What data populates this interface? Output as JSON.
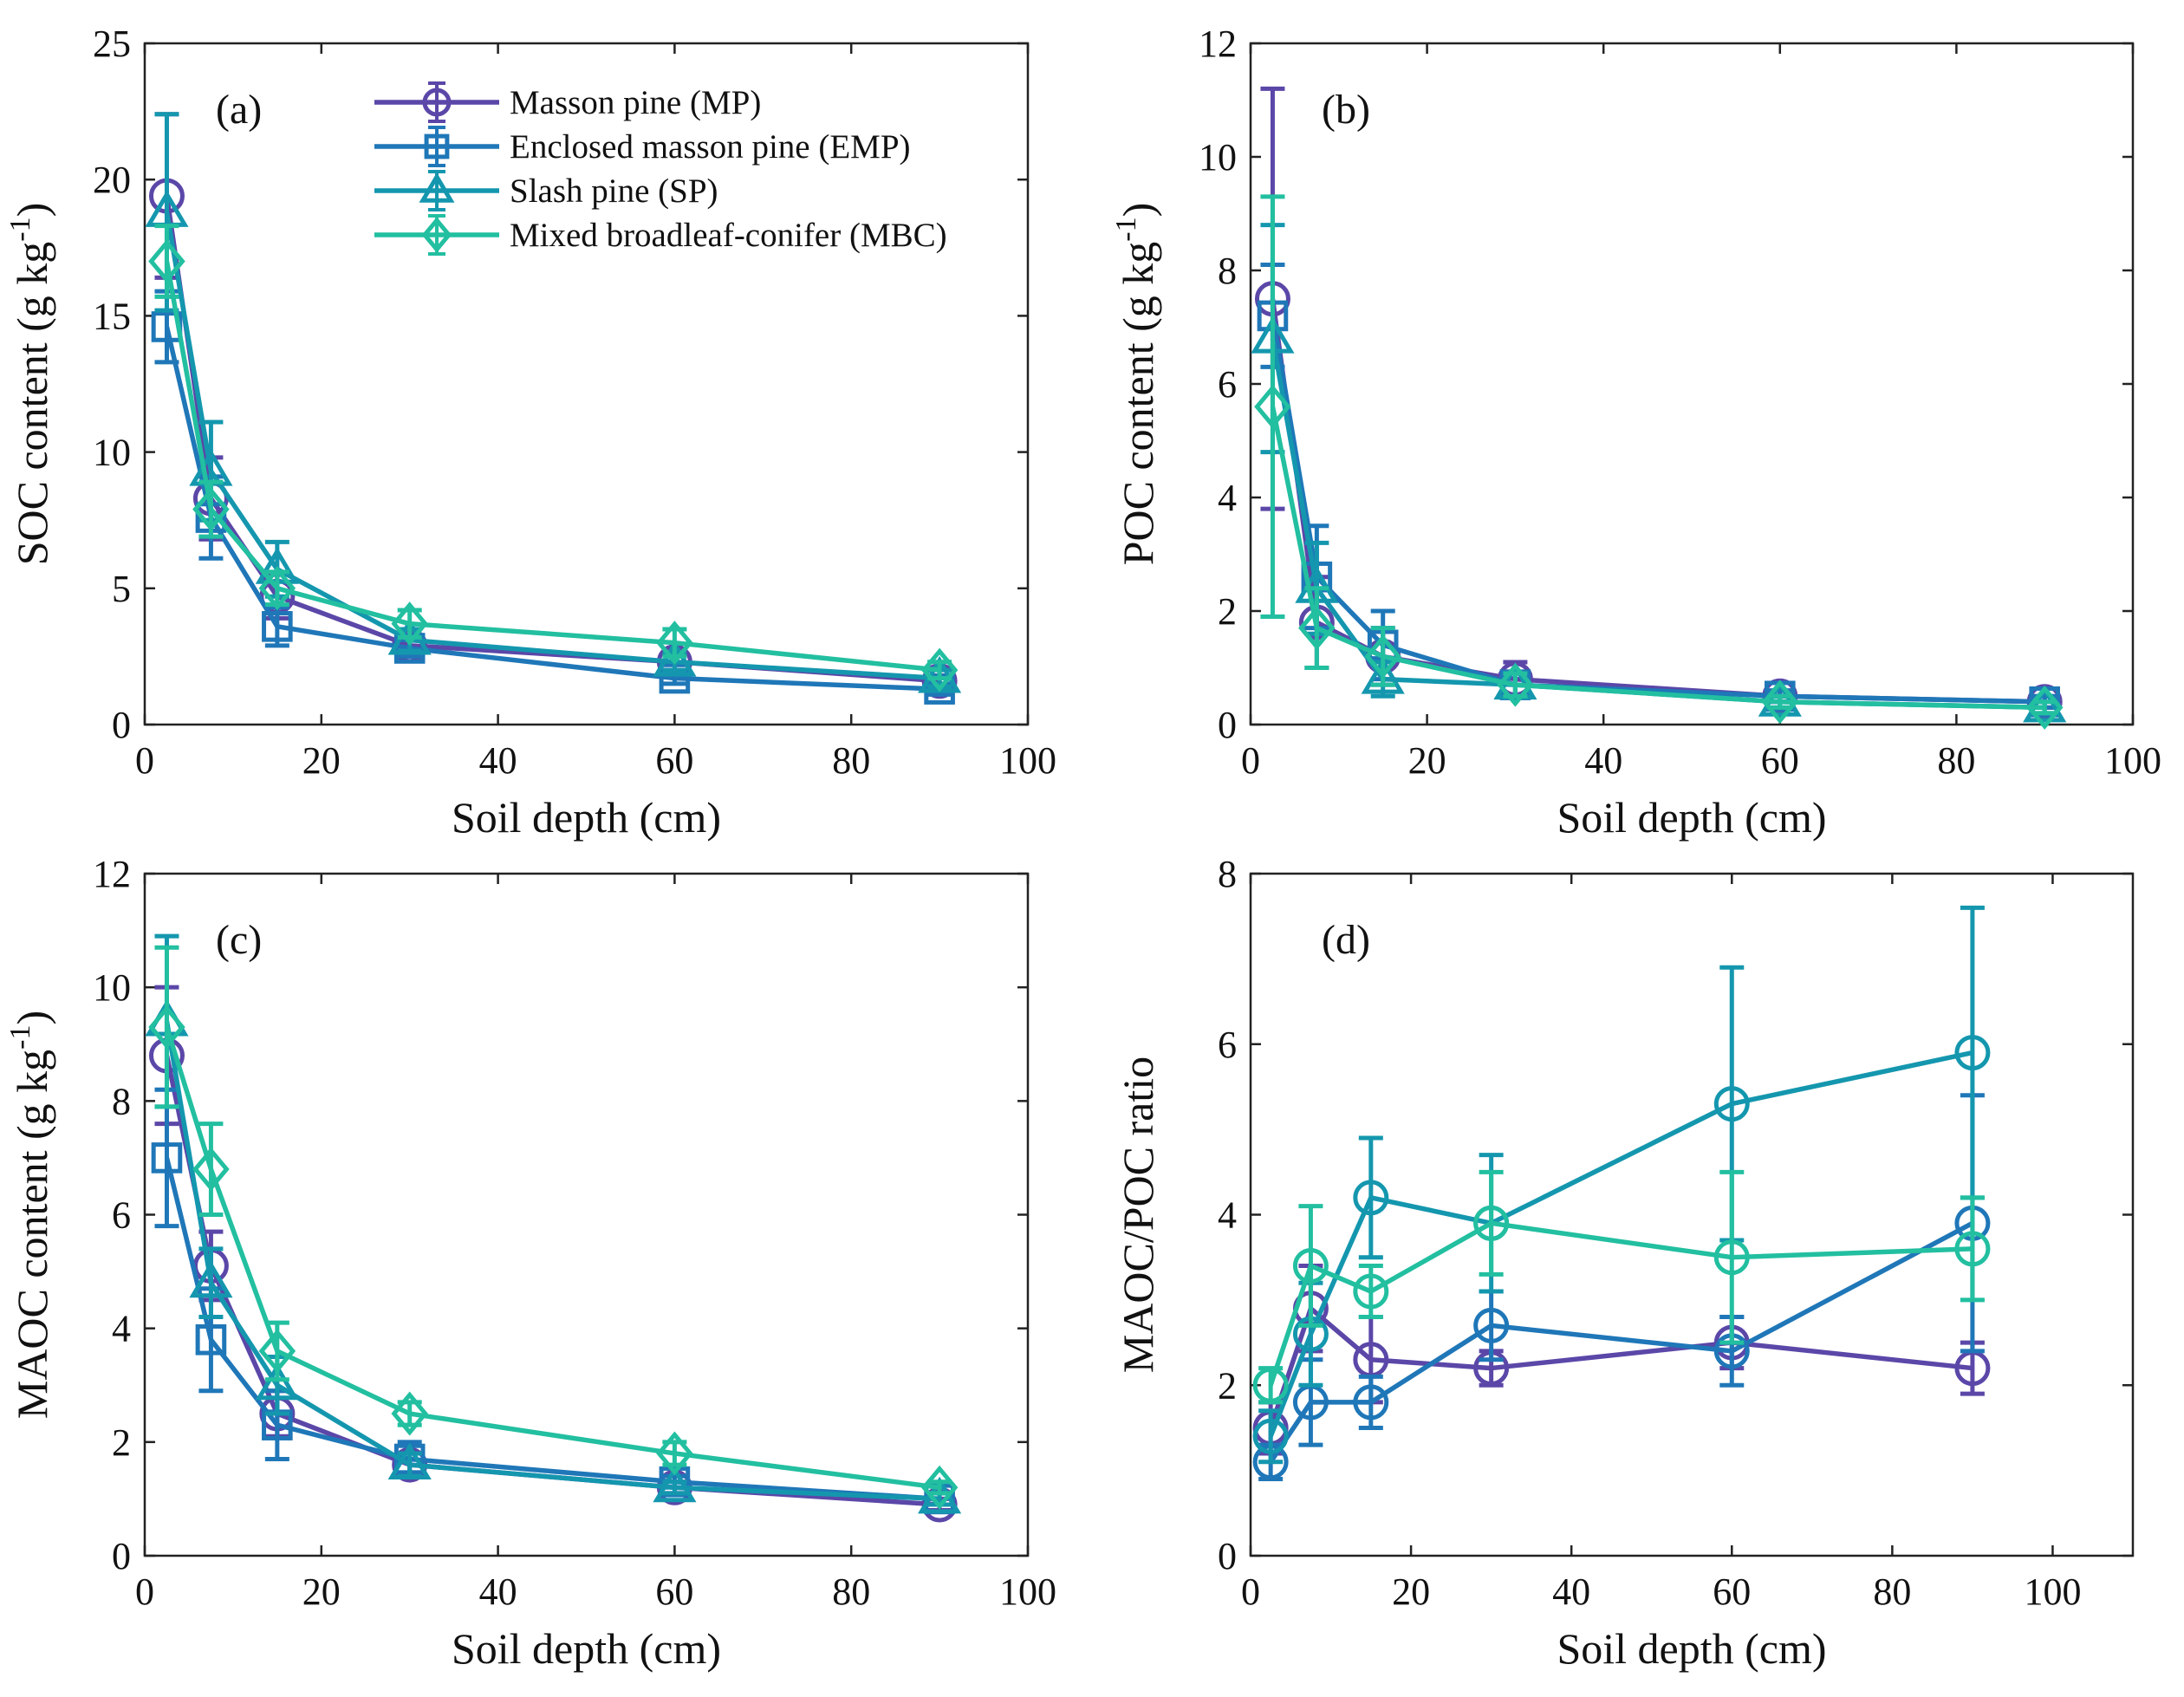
{
  "colors": {
    "MP": "#5B47A8",
    "EMP": "#1F77B8",
    "SP": "#1497AE",
    "MBC": "#22BFA0",
    "axis": "#222222"
  },
  "legend": {
    "entries": [
      {
        "key": "MP",
        "label": "Masson pine (MP)",
        "marker": "circle"
      },
      {
        "key": "EMP",
        "label": "Enclosed masson pine (EMP)",
        "marker": "square"
      },
      {
        "key": "SP",
        "label": "Slash pine (SP)",
        "marker": "triangle"
      },
      {
        "key": "MBC",
        "label": "Mixed broadleaf-conifer (MBC)",
        "marker": "diamond"
      }
    ]
  },
  "chart_data": [
    {
      "type": "line",
      "panel": "(a)",
      "xlabel": "Soil depth (cm)",
      "ylabel": "SOC content (g kg",
      "ylabel_sup": "-1",
      "ylabel_suffix": ")",
      "xlim": [
        0,
        100
      ],
      "ylim": [
        0,
        25
      ],
      "xticks": [
        0,
        20,
        40,
        60,
        80,
        100
      ],
      "yticks": [
        0,
        5,
        10,
        15,
        20,
        25
      ],
      "legend": "top",
      "series": [
        {
          "name": "Masson pine (MP)",
          "key": "MP",
          "marker": "circle",
          "x": [
            2.5,
            7.5,
            15,
            30,
            60,
            90
          ],
          "y": [
            19.4,
            8.3,
            4.7,
            2.9,
            2.3,
            1.6
          ],
          "err": [
            3.0,
            1.5,
            0.8,
            0.4,
            0.3,
            0.2
          ]
        },
        {
          "name": "Enclosed masson pine (EMP)",
          "key": "EMP",
          "marker": "square",
          "x": [
            2.5,
            7.5,
            15,
            30,
            60,
            90
          ],
          "y": [
            14.6,
            7.6,
            3.6,
            2.8,
            1.7,
            1.3
          ],
          "err": [
            1.3,
            1.5,
            0.7,
            0.3,
            0.2,
            0.2
          ]
        },
        {
          "name": "Slash pine (SP)",
          "key": "SP",
          "marker": "triangle",
          "x": [
            2.5,
            7.5,
            15,
            30,
            60,
            90
          ],
          "y": [
            18.8,
            9.3,
            5.7,
            3.1,
            2.3,
            1.7
          ],
          "err": [
            3.6,
            1.8,
            1.0,
            0.4,
            0.3,
            0.3
          ]
        },
        {
          "name": "Mixed broadleaf-conifer (MBC)",
          "key": "MBC",
          "marker": "diamond",
          "x": [
            2.5,
            7.5,
            15,
            30,
            60,
            90
          ],
          "y": [
            17.0,
            7.9,
            5.0,
            3.7,
            3.0,
            2.0
          ],
          "err": [
            1.3,
            1.0,
            0.6,
            0.5,
            0.5,
            0.3
          ]
        }
      ]
    },
    {
      "type": "line",
      "panel": "(b)",
      "xlabel": "Soil depth (cm)",
      "ylabel": "POC content (g kg",
      "ylabel_sup": "-1",
      "ylabel_suffix": ")",
      "xlim": [
        0,
        100
      ],
      "ylim": [
        0,
        12
      ],
      "xticks": [
        0,
        20,
        40,
        60,
        80,
        100
      ],
      "yticks": [
        0,
        2,
        4,
        6,
        8,
        10,
        12
      ],
      "series": [
        {
          "name": "Masson pine (MP)",
          "key": "MP",
          "marker": "circle",
          "x": [
            2.5,
            7.5,
            15,
            30,
            60,
            90
          ],
          "y": [
            7.5,
            1.8,
            1.2,
            0.8,
            0.5,
            0.4
          ],
          "err": [
            3.7,
            0.8,
            0.5,
            0.3,
            0.1,
            0.1
          ]
        },
        {
          "name": "Enclosed masson pine (EMP)",
          "key": "EMP",
          "marker": "square",
          "x": [
            2.5,
            7.5,
            15,
            30,
            60,
            90
          ],
          "y": [
            7.2,
            2.6,
            1.4,
            0.7,
            0.5,
            0.4
          ],
          "err": [
            0.9,
            0.9,
            0.6,
            0.2,
            0.1,
            0.1
          ]
        },
        {
          "name": "Slash pine (SP)",
          "key": "SP",
          "marker": "triangle",
          "x": [
            2.5,
            7.5,
            15,
            30,
            60,
            90
          ],
          "y": [
            6.8,
            2.4,
            0.8,
            0.7,
            0.4,
            0.3
          ],
          "err": [
            2.0,
            0.8,
            0.3,
            0.2,
            0.1,
            0.1
          ]
        },
        {
          "name": "Mixed broadleaf-conifer (MBC)",
          "key": "MBC",
          "marker": "diamond",
          "x": [
            2.5,
            7.5,
            15,
            30,
            60,
            90
          ],
          "y": [
            5.6,
            1.7,
            1.2,
            0.7,
            0.4,
            0.3
          ],
          "err": [
            3.7,
            0.7,
            0.5,
            0.2,
            0.1,
            0.1
          ]
        }
      ]
    },
    {
      "type": "line",
      "panel": "(c)",
      "xlabel": "Soil depth (cm)",
      "ylabel": "MAOC content (g kg",
      "ylabel_sup": "-1",
      "ylabel_suffix": ")",
      "xlim": [
        0,
        100
      ],
      "ylim": [
        0,
        12
      ],
      "xticks": [
        0,
        20,
        40,
        60,
        80,
        100
      ],
      "yticks": [
        0,
        2,
        4,
        6,
        8,
        10,
        12
      ],
      "series": [
        {
          "name": "Masson pine (MP)",
          "key": "MP",
          "marker": "circle",
          "x": [
            2.5,
            7.5,
            15,
            30,
            60,
            90
          ],
          "y": [
            8.8,
            5.1,
            2.5,
            1.6,
            1.2,
            0.9
          ],
          "err": [
            1.2,
            0.6,
            0.4,
            0.2,
            0.1,
            0.1
          ]
        },
        {
          "name": "Enclosed masson pine (EMP)",
          "key": "EMP",
          "marker": "square",
          "x": [
            2.5,
            7.5,
            15,
            30,
            60,
            90
          ],
          "y": [
            7.0,
            3.8,
            2.3,
            1.7,
            1.3,
            1.0
          ],
          "err": [
            1.2,
            0.9,
            0.6,
            0.3,
            0.1,
            0.1
          ]
        },
        {
          "name": "Slash pine (SP)",
          "key": "SP",
          "marker": "triangle",
          "x": [
            2.5,
            7.5,
            15,
            30,
            60,
            90
          ],
          "y": [
            9.4,
            4.8,
            3.0,
            1.6,
            1.2,
            1.0
          ],
          "err": [
            1.5,
            0.6,
            0.5,
            0.2,
            0.1,
            0.1
          ]
        },
        {
          "name": "Mixed broadleaf-conifer (MBC)",
          "key": "MBC",
          "marker": "diamond",
          "x": [
            2.5,
            7.5,
            15,
            30,
            60,
            90
          ],
          "y": [
            9.3,
            6.8,
            3.6,
            2.5,
            1.8,
            1.2
          ],
          "err": [
            1.4,
            0.8,
            0.5,
            0.2,
            0.2,
            0.1
          ]
        }
      ]
    },
    {
      "type": "line",
      "panel": "(d)",
      "xlabel": "Soil depth (cm)",
      "ylabel": "MAOC/POC ratio",
      "xlim": [
        0,
        110
      ],
      "ylim": [
        0,
        8
      ],
      "xticks": [
        0,
        20,
        40,
        60,
        80,
        100
      ],
      "yticks": [
        0,
        2,
        4,
        6,
        8
      ],
      "series": [
        {
          "name": "Masson pine (MP)",
          "key": "MP",
          "marker": "circle",
          "x": [
            2.5,
            7.5,
            15,
            30,
            60,
            90
          ],
          "y": [
            1.5,
            2.9,
            2.3,
            2.2,
            2.5,
            2.2
          ],
          "err": [
            0.3,
            0.5,
            0.5,
            0.2,
            0.3,
            0.3
          ]
        },
        {
          "name": "Enclosed masson pine (EMP)",
          "key": "EMP",
          "marker": "circle",
          "x": [
            2.5,
            7.5,
            15,
            30,
            60,
            90
          ],
          "y": [
            1.1,
            1.8,
            1.8,
            2.7,
            2.4,
            3.9
          ],
          "err": [
            0.2,
            0.5,
            0.3,
            0.4,
            0.4,
            1.5
          ]
        },
        {
          "name": "Slash pine (SP)",
          "key": "SP",
          "marker": "circle",
          "x": [
            2.5,
            7.5,
            15,
            30,
            60,
            90
          ],
          "y": [
            1.4,
            2.6,
            4.2,
            3.9,
            5.3,
            5.9
          ],
          "err": [
            0.3,
            0.6,
            0.7,
            0.8,
            1.6,
            1.7
          ]
        },
        {
          "name": "Mixed broadleaf-conifer (MBC)",
          "key": "MBC",
          "marker": "circle",
          "x": [
            2.5,
            7.5,
            15,
            30,
            60,
            90
          ],
          "y": [
            2.0,
            3.4,
            3.1,
            3.9,
            3.5,
            3.6
          ],
          "err": [
            0.2,
            0.7,
            0.3,
            0.6,
            1.0,
            0.6
          ]
        }
      ]
    }
  ]
}
